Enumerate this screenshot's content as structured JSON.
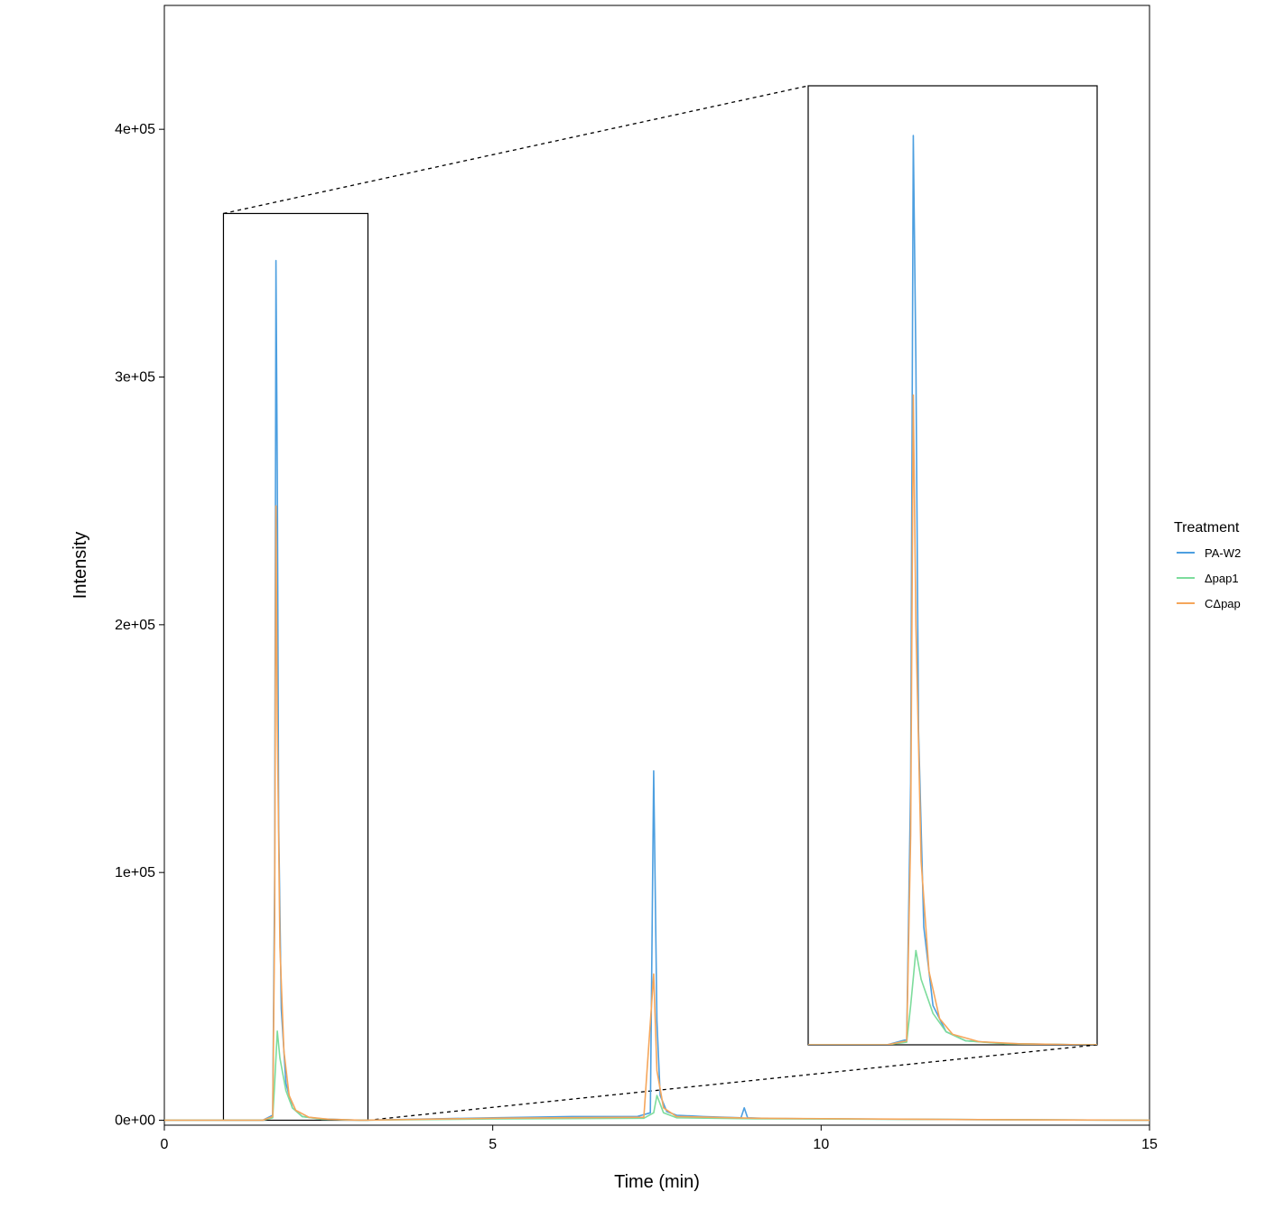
{
  "chart_data": {
    "type": "line",
    "xlabel": "Time (min)",
    "ylabel": "Intensity",
    "xlim": [
      0,
      15
    ],
    "ylim": [
      -2000,
      450000
    ],
    "x_ticks": [
      0,
      5,
      10,
      15
    ],
    "x_tick_labels": [
      "0",
      "5",
      "10",
      "15"
    ],
    "y_ticks": [
      0,
      100000,
      200000,
      300000,
      400000
    ],
    "y_tick_labels": [
      "0e+00",
      "1e+05",
      "2e+05",
      "3e+05",
      "4e+05"
    ],
    "grid": false,
    "legend": {
      "title": "Treatment",
      "placement": "right",
      "entries": [
        {
          "label": "PA-W2",
          "color": "#4d9fe0"
        },
        {
          "label": "Δpap1",
          "color": "#7ddc9c"
        },
        {
          "label": "CΔpap",
          "color": "#f5a65b"
        }
      ]
    },
    "series": [
      {
        "name": "PA-W2",
        "color": "#4d9fe0",
        "x": [
          0,
          1.5,
          1.65,
          1.68,
          1.7,
          1.72,
          1.74,
          1.78,
          1.85,
          1.95,
          2.1,
          2.4,
          3.0,
          5.0,
          6.2,
          6.6,
          7.2,
          7.4,
          7.45,
          7.5,
          7.55,
          7.65,
          7.8,
          8.2,
          8.78,
          8.83,
          8.88,
          9.2,
          12.0,
          15.0
        ],
        "y": [
          0,
          0,
          2000,
          100000,
          347000,
          260000,
          120000,
          45000,
          15000,
          5000,
          1500,
          500,
          0,
          1000,
          1500,
          1500,
          1500,
          3000,
          141000,
          40000,
          10000,
          3500,
          2000,
          1500,
          1000,
          5000,
          1000,
          700,
          300,
          0
        ]
      },
      {
        "name": "Δpap1",
        "color": "#7ddc9c",
        "x": [
          0,
          1.5,
          1.65,
          1.68,
          1.72,
          1.76,
          1.85,
          1.95,
          2.1,
          2.4,
          3.0,
          5.0,
          7.3,
          7.45,
          7.5,
          7.6,
          7.8,
          9.0,
          12.0,
          15.0
        ],
        "y": [
          0,
          0,
          1000,
          15000,
          36000,
          25000,
          12000,
          5000,
          1500,
          400,
          0,
          500,
          800,
          3000,
          10000,
          3000,
          1000,
          600,
          300,
          0
        ]
      },
      {
        "name": "CΔpap",
        "color": "#f5a65b",
        "x": [
          0,
          1.5,
          1.65,
          1.68,
          1.7,
          1.72,
          1.76,
          1.82,
          1.9,
          2.0,
          2.2,
          2.5,
          3.0,
          5.0,
          7.3,
          7.45,
          7.5,
          7.6,
          7.8,
          9.0,
          12.0,
          15.0
        ],
        "y": [
          0,
          0,
          1500,
          80000,
          248000,
          160000,
          70000,
          28000,
          10000,
          4000,
          1200,
          400,
          0,
          800,
          1200,
          59000,
          20000,
          5000,
          1500,
          800,
          300,
          0
        ]
      }
    ],
    "zoom_inset": {
      "source_xlim": [
        0.9,
        3.1
      ],
      "source_ylim": [
        0,
        366000
      ]
    }
  }
}
